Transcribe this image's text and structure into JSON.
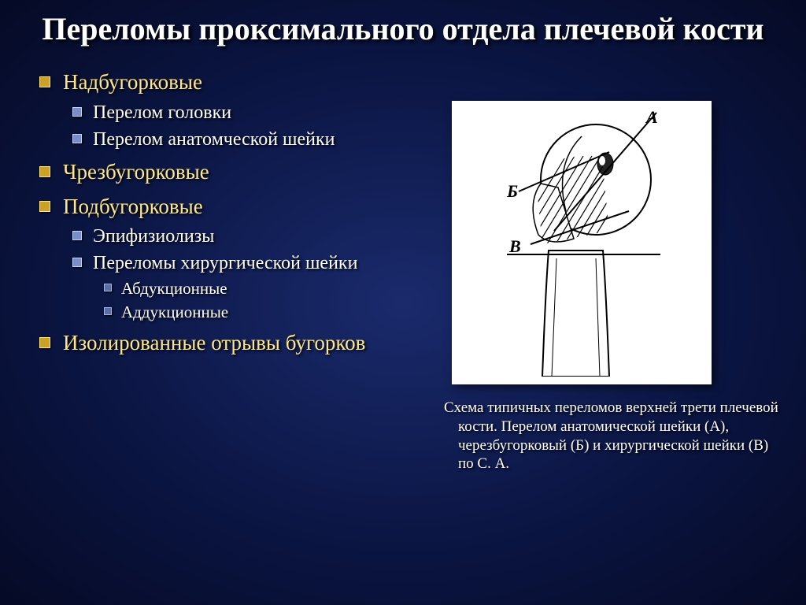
{
  "title": "Переломы проксимального отдела плечевой кости",
  "bullet_colors": {
    "l1_fill": "#c9a227",
    "l1_border": "#ffe789",
    "l2_fill": "#7a8fc9",
    "l2_border": "#c5d4ff",
    "l3_fill": "#5a6fa9",
    "l3_border": "#a5b4e0"
  },
  "text_colors": {
    "l1": "#ffe789",
    "l2": "#ffffff",
    "l3": "#ffffff",
    "title": "#ffffff",
    "caption": "#ffffff"
  },
  "list": [
    {
      "label": "Надбугорковые",
      "children": [
        {
          "label": "Перелом головки"
        },
        {
          "label": "Перелом анатомческой шейки"
        }
      ]
    },
    {
      "label": "Чрезбугорковые"
    },
    {
      "label": "Подбугорковые",
      "children": [
        {
          "label": "Эпифизиолизы"
        },
        {
          "label": "Переломы хирургической шейки",
          "children": [
            {
              "label": "Абдукционные"
            },
            {
              "label": "Аддукционные"
            }
          ]
        }
      ]
    },
    {
      "label": "Изолированные отрывы бугорков"
    }
  ],
  "diagram": {
    "labels": {
      "A": "А",
      "B": "Б",
      "V": "В"
    },
    "stroke": "#000000",
    "fill": "#ffffff"
  },
  "caption": "Схема типичных переломов верхней трети плечевой кости. Перелом анатомической шейки (А), черезбугорковый (Б) и хирургической шейки (В) по С. А."
}
